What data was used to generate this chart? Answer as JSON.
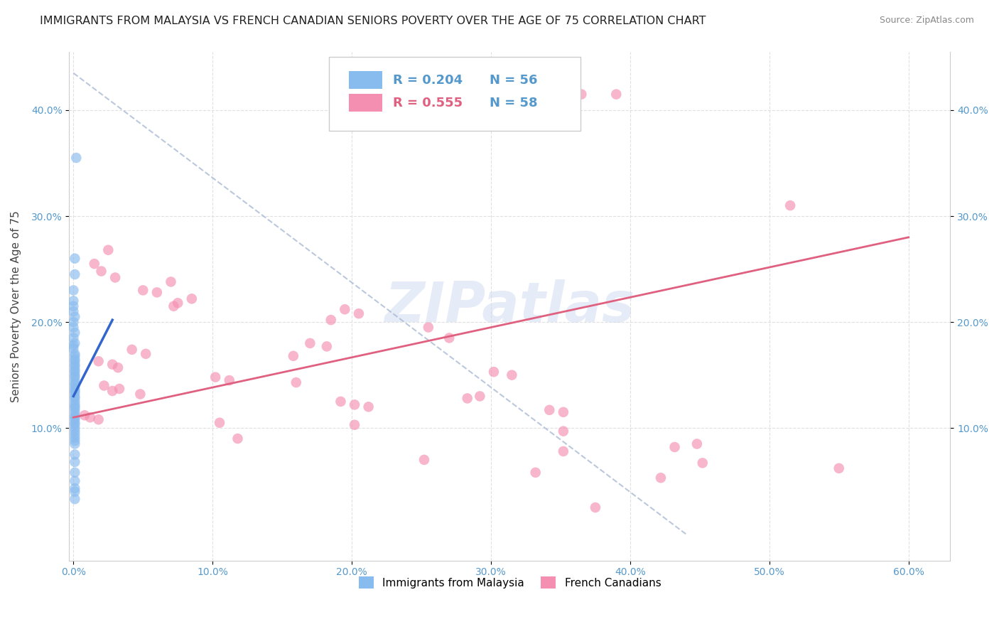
{
  "title": "IMMIGRANTS FROM MALAYSIA VS FRENCH CANADIAN SENIORS POVERTY OVER THE AGE OF 75 CORRELATION CHART",
  "source": "Source: ZipAtlas.com",
  "ylabel": "Seniors Poverty Over the Age of 75",
  "xlim": [
    -0.003,
    0.63
  ],
  "ylim": [
    -0.025,
    0.455
  ],
  "xlabel_vals": [
    0.0,
    0.1,
    0.2,
    0.3,
    0.4,
    0.5,
    0.6
  ],
  "xlabel_ticks": [
    "0.0%",
    "10.0%",
    "20.0%",
    "30.0%",
    "40.0%",
    "50.0%",
    "60.0%"
  ],
  "ylabel_vals": [
    0.1,
    0.2,
    0.3,
    0.4
  ],
  "ylabel_ticks": [
    "10.0%",
    "20.0%",
    "30.0%",
    "40.0%"
  ],
  "watermark": "ZIPatlas",
  "blue_R": "0.204",
  "blue_N": "56",
  "pink_R": "0.555",
  "pink_N": "58",
  "blue_color": "#88bbee",
  "pink_color": "#f48fb1",
  "blue_line_color": "#3366cc",
  "pink_line_color": "#e06080",
  "diag_color": "#aabbd4",
  "blue_label": "Immigrants from Malaysia",
  "pink_label": "French Canadians",
  "background_color": "#ffffff",
  "grid_color": "#dddddd",
  "tick_color": "#5599cc",
  "title_fontsize": 11.5,
  "source_fontsize": 9,
  "blue_scatter": [
    [
      0.002,
      0.355
    ],
    [
      0.001,
      0.26
    ],
    [
      0.001,
      0.245
    ],
    [
      0.0,
      0.23
    ],
    [
      0.0,
      0.22
    ],
    [
      0.0,
      0.215
    ],
    [
      0.0,
      0.21
    ],
    [
      0.001,
      0.205
    ],
    [
      0.0,
      0.2
    ],
    [
      0.0,
      0.195
    ],
    [
      0.001,
      0.19
    ],
    [
      0.0,
      0.185
    ],
    [
      0.001,
      0.18
    ],
    [
      0.0,
      0.178
    ],
    [
      0.0,
      0.175
    ],
    [
      0.001,
      0.17
    ],
    [
      0.001,
      0.168
    ],
    [
      0.001,
      0.165
    ],
    [
      0.001,
      0.163
    ],
    [
      0.001,
      0.16
    ],
    [
      0.001,
      0.158
    ],
    [
      0.001,
      0.155
    ],
    [
      0.001,
      0.153
    ],
    [
      0.001,
      0.15
    ],
    [
      0.001,
      0.148
    ],
    [
      0.001,
      0.145
    ],
    [
      0.001,
      0.142
    ],
    [
      0.001,
      0.14
    ],
    [
      0.001,
      0.137
    ],
    [
      0.001,
      0.135
    ],
    [
      0.001,
      0.133
    ],
    [
      0.001,
      0.13
    ],
    [
      0.001,
      0.128
    ],
    [
      0.001,
      0.125
    ],
    [
      0.001,
      0.122
    ],
    [
      0.001,
      0.12
    ],
    [
      0.001,
      0.118
    ],
    [
      0.001,
      0.115
    ],
    [
      0.001,
      0.112
    ],
    [
      0.001,
      0.11
    ],
    [
      0.001,
      0.108
    ],
    [
      0.001,
      0.105
    ],
    [
      0.001,
      0.103
    ],
    [
      0.001,
      0.1
    ],
    [
      0.001,
      0.097
    ],
    [
      0.001,
      0.094
    ],
    [
      0.001,
      0.091
    ],
    [
      0.001,
      0.088
    ],
    [
      0.001,
      0.085
    ],
    [
      0.001,
      0.075
    ],
    [
      0.001,
      0.068
    ],
    [
      0.001,
      0.058
    ],
    [
      0.001,
      0.05
    ],
    [
      0.001,
      0.043
    ],
    [
      0.001,
      0.04
    ],
    [
      0.001,
      0.033
    ]
  ],
  "pink_scatter": [
    [
      0.365,
      0.415
    ],
    [
      0.39,
      0.415
    ],
    [
      0.515,
      0.31
    ],
    [
      0.025,
      0.268
    ],
    [
      0.015,
      0.255
    ],
    [
      0.02,
      0.248
    ],
    [
      0.03,
      0.242
    ],
    [
      0.07,
      0.238
    ],
    [
      0.05,
      0.23
    ],
    [
      0.06,
      0.228
    ],
    [
      0.085,
      0.222
    ],
    [
      0.075,
      0.218
    ],
    [
      0.072,
      0.215
    ],
    [
      0.195,
      0.212
    ],
    [
      0.205,
      0.208
    ],
    [
      0.185,
      0.202
    ],
    [
      0.255,
      0.195
    ],
    [
      0.27,
      0.185
    ],
    [
      0.17,
      0.18
    ],
    [
      0.182,
      0.177
    ],
    [
      0.042,
      0.174
    ],
    [
      0.052,
      0.17
    ],
    [
      0.158,
      0.168
    ],
    [
      0.018,
      0.163
    ],
    [
      0.028,
      0.16
    ],
    [
      0.032,
      0.157
    ],
    [
      0.302,
      0.153
    ],
    [
      0.315,
      0.15
    ],
    [
      0.102,
      0.148
    ],
    [
      0.112,
      0.145
    ],
    [
      0.16,
      0.143
    ],
    [
      0.022,
      0.14
    ],
    [
      0.033,
      0.137
    ],
    [
      0.028,
      0.135
    ],
    [
      0.048,
      0.132
    ],
    [
      0.292,
      0.13
    ],
    [
      0.283,
      0.128
    ],
    [
      0.192,
      0.125
    ],
    [
      0.202,
      0.122
    ],
    [
      0.212,
      0.12
    ],
    [
      0.342,
      0.117
    ],
    [
      0.352,
      0.115
    ],
    [
      0.008,
      0.112
    ],
    [
      0.012,
      0.11
    ],
    [
      0.018,
      0.108
    ],
    [
      0.105,
      0.105
    ],
    [
      0.202,
      0.103
    ],
    [
      0.352,
      0.097
    ],
    [
      0.118,
      0.09
    ],
    [
      0.448,
      0.085
    ],
    [
      0.432,
      0.082
    ],
    [
      0.352,
      0.078
    ],
    [
      0.252,
      0.07
    ],
    [
      0.452,
      0.067
    ],
    [
      0.55,
      0.062
    ],
    [
      0.332,
      0.058
    ],
    [
      0.422,
      0.053
    ],
    [
      0.375,
      0.025
    ]
  ],
  "blue_line_x": [
    0.0,
    0.028
  ],
  "blue_line_y": [
    0.13,
    0.202
  ],
  "pink_line_x": [
    0.0,
    0.6
  ],
  "pink_line_y": [
    0.11,
    0.28
  ],
  "diag_line_x": [
    0.0,
    0.44
  ],
  "diag_line_y": [
    0.435,
    0.0
  ]
}
